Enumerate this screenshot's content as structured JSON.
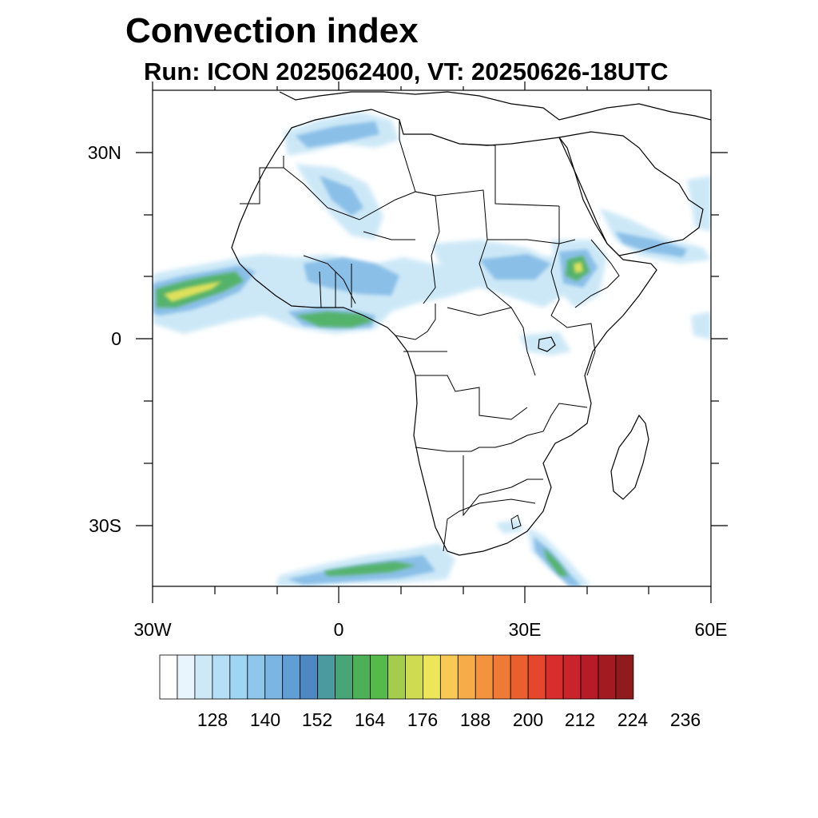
{
  "title": "Convection index",
  "subtitle": "Run: ICON 2025062400,  VT: 20250626-18UTC",
  "axes": {
    "lat_labels": [
      "30N",
      "0",
      "30S"
    ],
    "lon_labels": [
      "30W",
      "0",
      "30E",
      "60E"
    ]
  },
  "colorbar": {
    "labels": [
      "128",
      "140",
      "152",
      "164",
      "176",
      "188",
      "200",
      "212",
      "224",
      "236"
    ],
    "colors": [
      "#ffffff",
      "#e8f5fc",
      "#cde9f8",
      "#b5dff6",
      "#9dd5f3",
      "#8ec6ec",
      "#7ab5e4",
      "#5f9fd6",
      "#4d88c3",
      "#4a9aa0",
      "#47a578",
      "#4cb156",
      "#55ba4a",
      "#a4cd4d",
      "#cfdc52",
      "#eee65a",
      "#f8c955",
      "#f6ac48",
      "#f3933d",
      "#ef7a35",
      "#eb5f2e",
      "#e4472b",
      "#d92c2c",
      "#c9232c",
      "#b51c28",
      "#a31b21",
      "#8f1b1d"
    ]
  },
  "map": {
    "region": "Africa",
    "extent": {
      "lon_min": -30,
      "lon_max": 60,
      "lat_min": -40,
      "lat_max": 40
    },
    "colors": {
      "land_outline": "#000000",
      "background": "#ffffff"
    }
  }
}
